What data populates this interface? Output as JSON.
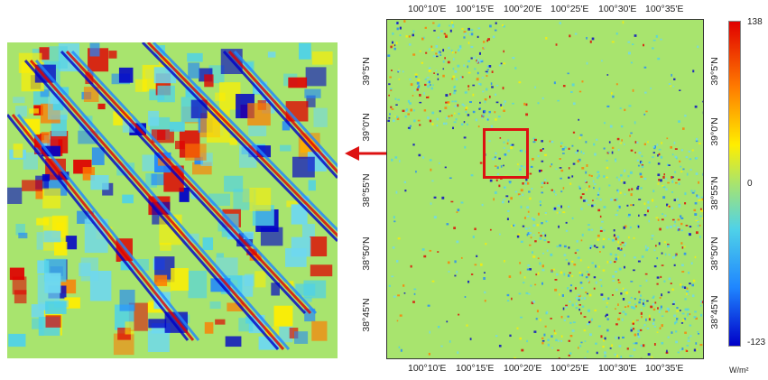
{
  "map": {
    "top_longitudes": [
      "100°10'E",
      "100°15'E",
      "100°20'E",
      "100°25'E",
      "100°30'E",
      "100°35'E"
    ],
    "bottom_longitudes": [
      "100°10'E",
      "100°15'E",
      "100°20'E",
      "100°25'E",
      "100°30'E",
      "100°35'E"
    ],
    "left_latitudes": [
      "39°5'N",
      "39°0'N",
      "38°55'N",
      "38°50'N",
      "38°45'N"
    ],
    "right_latitudes": [
      "39°5'N",
      "39°0'N",
      "38°55'N",
      "38°50'N",
      "38°45'N"
    ]
  },
  "colorbar": {
    "max": "138",
    "mid": "0",
    "min": "-123",
    "unit": "W/m²",
    "colors": [
      "#e00000",
      "#ff7a00",
      "#ffee00",
      "#a8e46e",
      "#4fd2e8",
      "#1f86ff",
      "#0000c8"
    ]
  },
  "highlight_color": "#dd1111"
}
